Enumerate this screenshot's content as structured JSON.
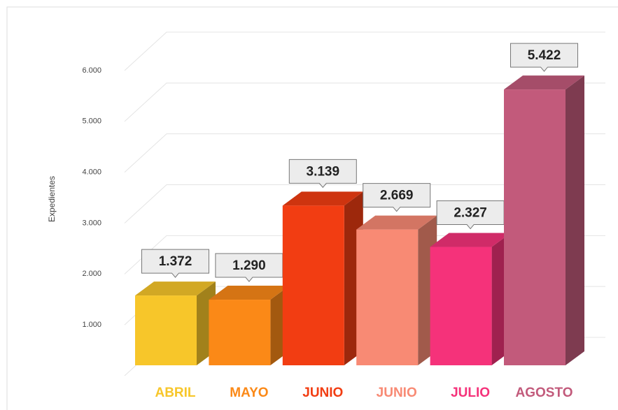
{
  "chart_data": {
    "type": "bar3d",
    "y_label": "Expedientes",
    "categories": [
      "ABRIL",
      "MAYO",
      "JUNIO",
      "JUNIO",
      "JULIO",
      "AGOSTO"
    ],
    "values": [
      1372,
      1290,
      3139,
      2669,
      2327,
      5422
    ],
    "value_labels": [
      "1.372",
      "1.290",
      "3.139",
      "2.669",
      "2.327",
      "5.422"
    ],
    "colors": [
      "#f7c62a",
      "#fb8917",
      "#f23d12",
      "#f88a74",
      "#f5327a",
      "#c25a7b"
    ],
    "ylim": [
      0,
      6000
    ],
    "yticks": [
      {
        "value": 1000,
        "label": "1.000"
      },
      {
        "value": 2000,
        "label": "2.000"
      },
      {
        "value": 3000,
        "label": "3.000"
      },
      {
        "value": 4000,
        "label": "4.000"
      },
      {
        "value": 5000,
        "label": "5.000"
      },
      {
        "value": 6000,
        "label": "6.000"
      }
    ],
    "grid": true
  }
}
